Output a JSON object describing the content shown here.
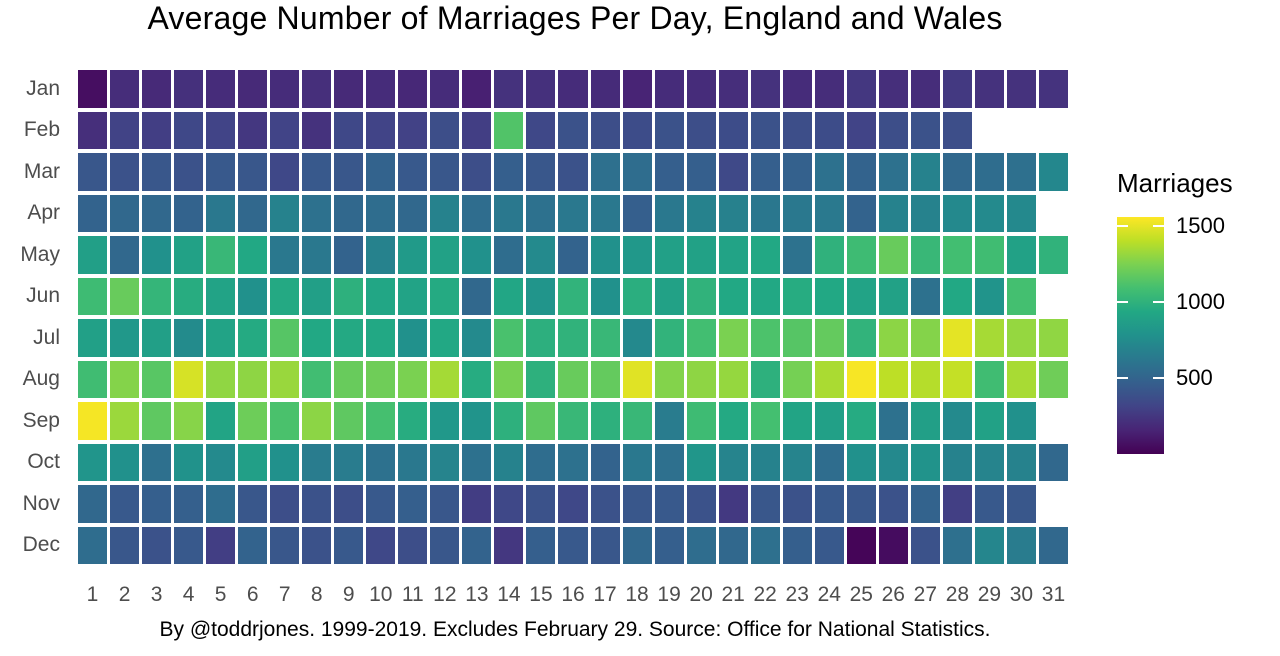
{
  "colors": {
    "background": "#ffffff",
    "axis_text": "#4d4d4d",
    "title_text": "#000000",
    "cell_gap": "#ffffff"
  },
  "chart_data": {
    "type": "heatmap",
    "title": "Average Number of Marriages Per Day, England and Wales",
    "caption": "By @toddrjones. 1999-2019. Excludes February 29. Source: Office for National Statistics.",
    "xlabel": "",
    "ylabel": "",
    "grid": false,
    "legend_position": "right",
    "x_labels": [
      "1",
      "2",
      "3",
      "4",
      "5",
      "6",
      "7",
      "8",
      "9",
      "10",
      "11",
      "12",
      "13",
      "14",
      "15",
      "16",
      "17",
      "18",
      "19",
      "20",
      "21",
      "22",
      "23",
      "24",
      "25",
      "26",
      "27",
      "28",
      "29",
      "30",
      "31"
    ],
    "legend": {
      "title": "Marriages",
      "ticks": [
        500,
        1000,
        1500
      ],
      "domain": [
        0,
        1560
      ]
    },
    "colormap": "viridis",
    "colormap_stops": [
      "#440154",
      "#482475",
      "#414487",
      "#355f8d",
      "#2a788e",
      "#21918c",
      "#22a884",
      "#44bf70",
      "#7ad151",
      "#bddf26",
      "#fde725"
    ],
    "months": [
      {
        "label": "Jan",
        "values": [
          60,
          200,
          185,
          215,
          195,
          185,
          195,
          210,
          185,
          195,
          175,
          195,
          140,
          225,
          215,
          195,
          190,
          155,
          195,
          195,
          205,
          225,
          195,
          200,
          250,
          210,
          200,
          260,
          225,
          225,
          230
        ]
      },
      {
        "label": "Feb",
        "values": [
          210,
          305,
          283,
          335,
          312,
          248,
          312,
          225,
          335,
          312,
          300,
          370,
          283,
          1130,
          335,
          390,
          370,
          360,
          390,
          370,
          360,
          393,
          370,
          360,
          312,
          370,
          390,
          370
        ]
      },
      {
        "label": "Mar",
        "values": [
          422,
          393,
          422,
          393,
          434,
          422,
          335,
          434,
          422,
          493,
          434,
          422,
          370,
          468,
          422,
          393,
          574,
          555,
          468,
          468,
          340,
          468,
          480,
          580,
          493,
          580,
          686,
          524,
          555,
          574,
          720
        ]
      },
      {
        "label": "Apr",
        "values": [
          493,
          524,
          524,
          493,
          624,
          524,
          686,
          580,
          524,
          555,
          524,
          686,
          555,
          624,
          580,
          624,
          624,
          468,
          624,
          686,
          680,
          620,
          624,
          630,
          490,
          686,
          686,
          730,
          736,
          730
        ]
      },
      {
        "label": "May",
        "values": [
          875,
          524,
          780,
          890,
          1040,
          936,
          624,
          624,
          493,
          686,
          840,
          890,
          780,
          555,
          736,
          490,
          780,
          825,
          880,
          890,
          905,
          936,
          585,
          1000,
          1065,
          1195,
          1040,
          1085,
          1075,
          890,
          1005
        ]
      },
      {
        "label": "Jun",
        "values": [
          1065,
          1195,
          1025,
          965,
          905,
          780,
          945,
          875,
          990,
          920,
          905,
          950,
          524,
          920,
          805,
          1010,
          780,
          975,
          890,
          1005,
          936,
          936,
          960,
          936,
          905,
          890,
          580,
          936,
          800,
          1090
        ]
      },
      {
        "label": "Jul",
        "values": [
          880,
          825,
          875,
          745,
          905,
          950,
          1145,
          936,
          945,
          936,
          780,
          936,
          736,
          1105,
          985,
          1005,
          1040,
          730,
          1010,
          1085,
          1248,
          1115,
          1145,
          1185,
          1010,
          1290,
          1272,
          1500,
          1350,
          1310,
          1300
        ]
      },
      {
        "label": "Aug",
        "values": [
          1075,
          1272,
          1150,
          1465,
          1300,
          1295,
          1320,
          1080,
          1195,
          1215,
          1248,
          1345,
          960,
          1240,
          990,
          1195,
          1185,
          1490,
          1270,
          1295,
          1312,
          990,
          1235,
          1360,
          1545,
          1404,
          1385,
          1420,
          1075,
          1355,
          1215
        ]
      },
      {
        "label": "Sep",
        "values": [
          1540,
          1325,
          1170,
          1278,
          910,
          1210,
          1110,
          1290,
          1170,
          1095,
          965,
          825,
          800,
          990,
          1170,
          1040,
          990,
          1040,
          649,
          1065,
          945,
          1092,
          910,
          880,
          955,
          580,
          875,
          736,
          890,
          780
        ]
      },
      {
        "label": "Oct",
        "values": [
          805,
          780,
          574,
          790,
          736,
          875,
          780,
          649,
          649,
          580,
          624,
          699,
          580,
          686,
          555,
          580,
          493,
          624,
          574,
          815,
          699,
          686,
          699,
          555,
          780,
          730,
          795,
          686,
          699,
          686,
          524
        ]
      },
      {
        "label": "Nov",
        "values": [
          524,
          434,
          468,
          472,
          555,
          422,
          370,
          393,
          370,
          434,
          468,
          422,
          280,
          335,
          393,
          335,
          393,
          422,
          434,
          393,
          259,
          422,
          393,
          434,
          422,
          393,
          493,
          287,
          434,
          422
        ]
      },
      {
        "label": "Dec",
        "values": [
          555,
          422,
          393,
          434,
          283,
          493,
          422,
          393,
          434,
          335,
          370,
          422,
          493,
          250,
          468,
          434,
          422,
          524,
          468,
          555,
          524,
          574,
          468,
          434,
          20,
          50,
          393,
          574,
          711,
          649,
          524
        ]
      }
    ]
  }
}
